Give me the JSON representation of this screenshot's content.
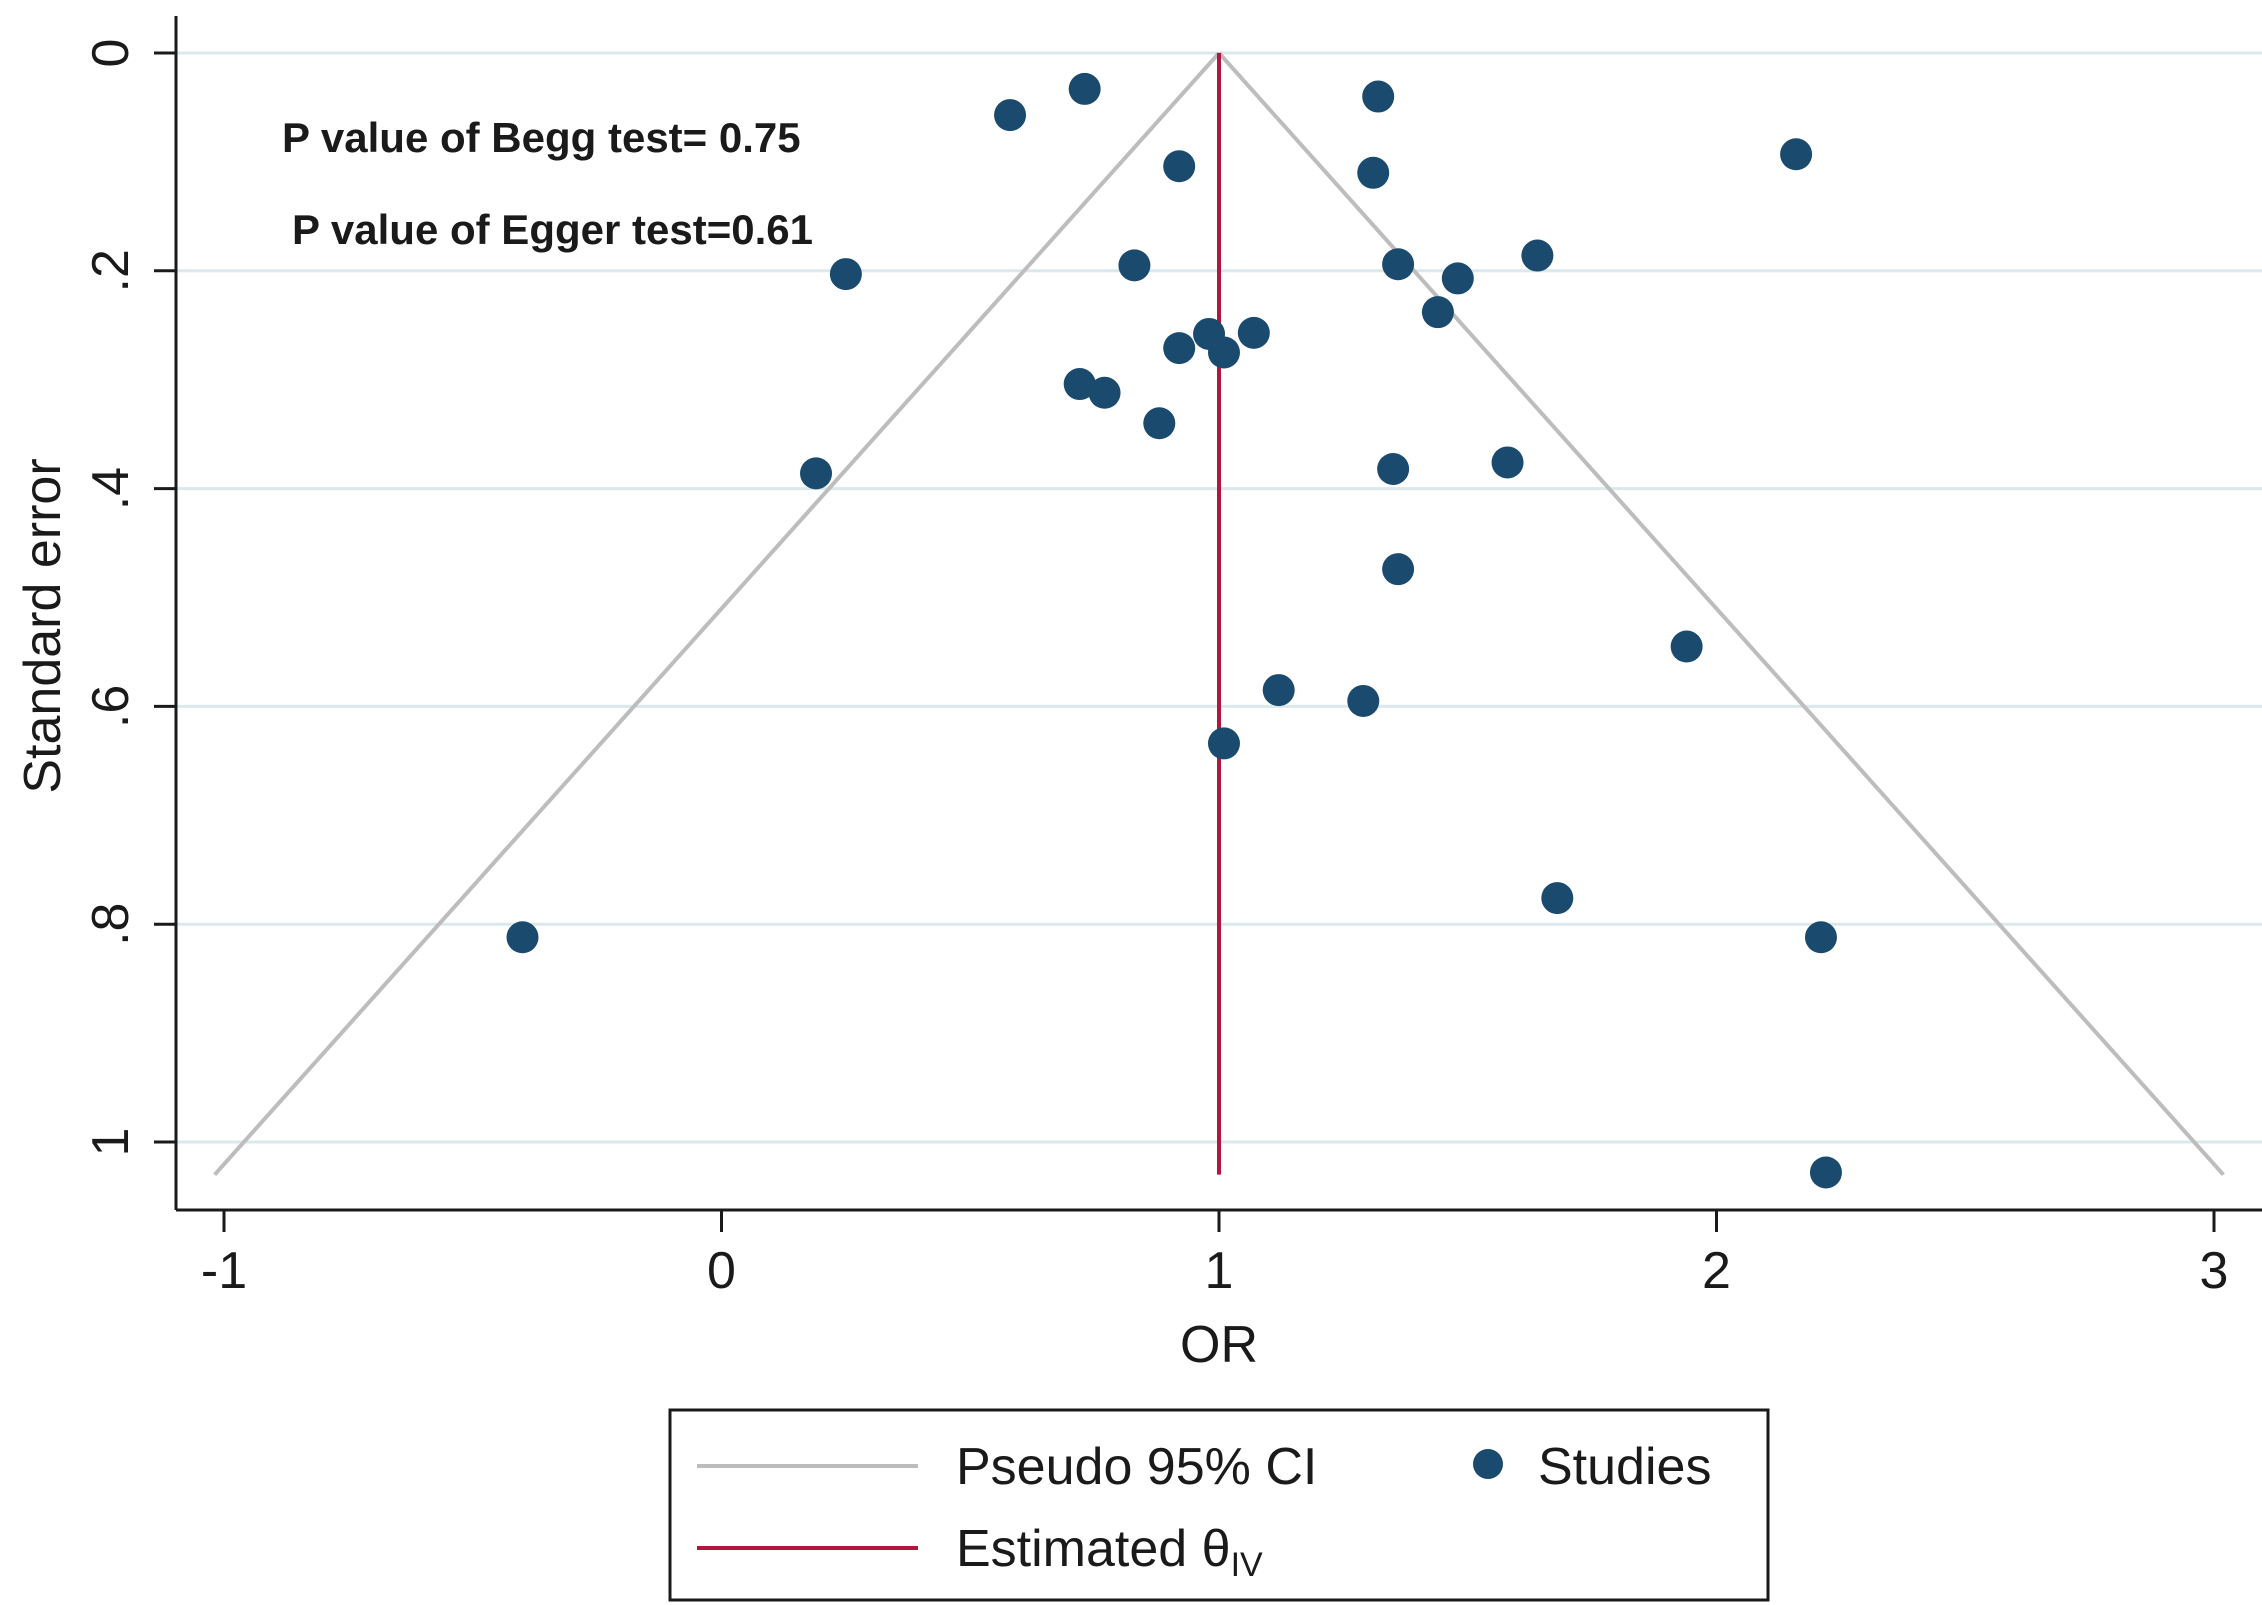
{
  "chart_data": {
    "type": "scatter",
    "xlabel": "OR",
    "ylabel": "Standard error",
    "xlim": [
      -1.05,
      3.05
    ],
    "ylim": [
      0,
      1.06
    ],
    "y_reversed": true,
    "xticks": [
      -1,
      0,
      1,
      2,
      3
    ],
    "xtick_labels": [
      "-1",
      "0",
      "1",
      "2",
      "3"
    ],
    "yticks": [
      0,
      0.2,
      0.4,
      0.6,
      0.8,
      1
    ],
    "ytick_labels": [
      "0",
      ".2",
      ".4",
      ".6",
      ".8",
      "1"
    ],
    "grid": true,
    "legend_position": "bottom",
    "colors": {
      "studies": "#1a4a6e",
      "estimate_line": "#b2163c",
      "ci_lines": "#bdbdbd",
      "grid": "#dbe8ec"
    },
    "annotations": [
      "P value of Begg test= 0.75",
      "P value of Egger test=0.61"
    ],
    "estimate": {
      "name": "Estimated θ",
      "subscript": "IV",
      "x": 1.0
    },
    "pseudo_ci": {
      "name": "Pseudo 95% CI",
      "apex": [
        1.0,
        0.0
      ],
      "se_max": 1.03,
      "z": 1.96
    },
    "series": [
      {
        "name": "Studies",
        "points": [
          {
            "x": 0.73,
            "y": 0.033
          },
          {
            "x": 1.32,
            "y": 0.04
          },
          {
            "x": 0.58,
            "y": 0.057
          },
          {
            "x": 2.16,
            "y": 0.093
          },
          {
            "x": 0.92,
            "y": 0.104
          },
          {
            "x": 1.31,
            "y": 0.11
          },
          {
            "x": 1.64,
            "y": 0.186
          },
          {
            "x": 0.83,
            "y": 0.195
          },
          {
            "x": 1.36,
            "y": 0.194
          },
          {
            "x": 0.25,
            "y": 0.203
          },
          {
            "x": 1.48,
            "y": 0.207
          },
          {
            "x": 1.44,
            "y": 0.238
          },
          {
            "x": 1.07,
            "y": 0.257
          },
          {
            "x": 0.98,
            "y": 0.258
          },
          {
            "x": 0.92,
            "y": 0.271
          },
          {
            "x": 1.01,
            "y": 0.275
          },
          {
            "x": 0.72,
            "y": 0.304
          },
          {
            "x": 0.77,
            "y": 0.312
          },
          {
            "x": 0.88,
            "y": 0.34
          },
          {
            "x": 1.58,
            "y": 0.376
          },
          {
            "x": 0.19,
            "y": 0.386
          },
          {
            "x": 1.35,
            "y": 0.382
          },
          {
            "x": 1.36,
            "y": 0.474
          },
          {
            "x": 1.94,
            "y": 0.545
          },
          {
            "x": 1.12,
            "y": 0.585
          },
          {
            "x": 1.29,
            "y": 0.595
          },
          {
            "x": 1.01,
            "y": 0.634
          },
          {
            "x": 1.68,
            "y": 0.776
          },
          {
            "x": -0.4,
            "y": 0.812
          },
          {
            "x": 2.21,
            "y": 0.812
          },
          {
            "x": 2.22,
            "y": 1.028
          }
        ]
      }
    ]
  }
}
